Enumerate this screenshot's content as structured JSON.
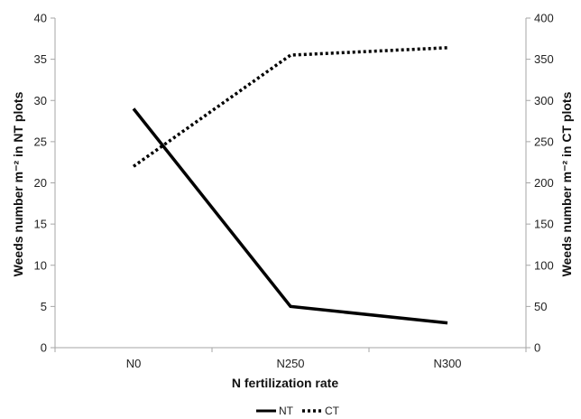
{
  "chart_data": {
    "type": "line",
    "title": "",
    "categories": [
      "N0",
      "N250",
      "N300"
    ],
    "xlabel": "N fertilization rate",
    "ylabel_left": "Weeds number m⁻² in NT plots",
    "ylabel_right": "Weeds number m⁻² in CT plots",
    "ylim_left": [
      0,
      40
    ],
    "ylim_right": [
      0,
      400
    ],
    "yticks_left": [
      0,
      5,
      10,
      15,
      20,
      25,
      30,
      35,
      40
    ],
    "yticks_right": [
      0,
      50,
      100,
      150,
      200,
      250,
      300,
      350,
      400
    ],
    "grid": false,
    "legend_position": "bottom",
    "series": [
      {
        "name": "NT",
        "axis": "left",
        "values": [
          29,
          5,
          3
        ],
        "style": "solid",
        "color": "#000000"
      },
      {
        "name": "CT",
        "axis": "right",
        "values": [
          220,
          355,
          364
        ],
        "style": "dotted",
        "color": "#000000"
      }
    ]
  }
}
